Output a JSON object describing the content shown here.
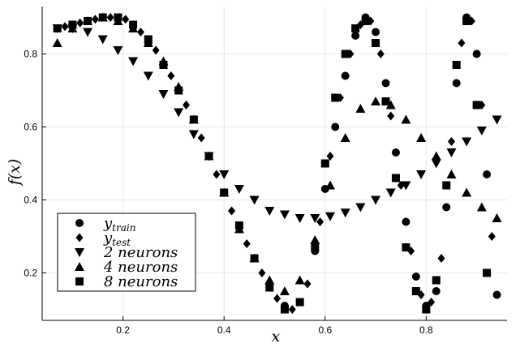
{
  "chart_data": {
    "type": "scatter",
    "xlabel": "x",
    "ylabel": "f(x)",
    "xlim": [
      0.04,
      0.96
    ],
    "ylim": [
      0.07,
      0.93
    ],
    "xticks": [
      0.2,
      0.4,
      0.6,
      0.8
    ],
    "yticks": [
      0.2,
      0.4,
      0.6,
      0.8
    ],
    "xtick_labels": [
      "0.2",
      "0.4",
      "0.6",
      "0.8"
    ],
    "ytick_labels": [
      "0.2",
      "0.4",
      "0.6",
      "0.8"
    ],
    "grid": true,
    "legend_position": "bottom-left",
    "series": [
      {
        "name_main": "y",
        "name_sub": "train",
        "marker": "circle",
        "x": [
          0.07,
          0.1,
          0.13,
          0.16,
          0.19,
          0.22,
          0.25,
          0.28,
          0.31,
          0.34,
          0.37,
          0.4,
          0.43,
          0.46,
          0.49,
          0.52,
          0.55,
          0.58,
          0.6,
          0.62,
          0.64,
          0.66,
          0.68,
          0.7,
          0.72,
          0.74,
          0.76,
          0.78,
          0.8,
          0.82,
          0.84,
          0.86,
          0.88,
          0.9,
          0.92,
          0.94
        ],
        "y": [
          0.87,
          0.88,
          0.89,
          0.9,
          0.9,
          0.88,
          0.83,
          0.77,
          0.7,
          0.62,
          0.52,
          0.42,
          0.33,
          0.24,
          0.16,
          0.11,
          0.12,
          0.26,
          0.43,
          0.6,
          0.74,
          0.85,
          0.9,
          0.86,
          0.72,
          0.53,
          0.34,
          0.19,
          0.11,
          0.15,
          0.38,
          0.72,
          0.9,
          0.8,
          0.47,
          0.14
        ]
      },
      {
        "name_main": "y",
        "name_sub": "test",
        "marker": "diamond",
        "x": [
          0.085,
          0.115,
          0.145,
          0.175,
          0.205,
          0.235,
          0.265,
          0.295,
          0.325,
          0.355,
          0.385,
          0.415,
          0.445,
          0.475,
          0.505,
          0.535,
          0.565,
          0.59,
          0.61,
          0.63,
          0.65,
          0.67,
          0.69,
          0.71,
          0.73,
          0.75,
          0.77,
          0.79,
          0.81,
          0.83,
          0.85,
          0.87,
          0.89,
          0.91,
          0.93
        ],
        "y": [
          0.875,
          0.885,
          0.895,
          0.9,
          0.895,
          0.86,
          0.81,
          0.74,
          0.66,
          0.57,
          0.47,
          0.37,
          0.28,
          0.2,
          0.13,
          0.1,
          0.17,
          0.34,
          0.52,
          0.68,
          0.8,
          0.88,
          0.89,
          0.8,
          0.63,
          0.44,
          0.26,
          0.14,
          0.12,
          0.24,
          0.56,
          0.83,
          0.89,
          0.66,
          0.3
        ]
      },
      {
        "name_main": "2 neurons",
        "name_sub": "",
        "marker": "triangle-down",
        "x": [
          0.07,
          0.1,
          0.13,
          0.16,
          0.19,
          0.22,
          0.25,
          0.28,
          0.31,
          0.34,
          0.37,
          0.4,
          0.43,
          0.46,
          0.49,
          0.52,
          0.55,
          0.58,
          0.61,
          0.64,
          0.67,
          0.7,
          0.73,
          0.76,
          0.79,
          0.82,
          0.85,
          0.88,
          0.91,
          0.94
        ],
        "y": [
          0.87,
          0.87,
          0.86,
          0.84,
          0.81,
          0.78,
          0.74,
          0.69,
          0.64,
          0.58,
          0.52,
          0.47,
          0.43,
          0.4,
          0.37,
          0.36,
          0.35,
          0.35,
          0.355,
          0.365,
          0.38,
          0.4,
          0.42,
          0.44,
          0.47,
          0.5,
          0.53,
          0.56,
          0.59,
          0.62
        ]
      },
      {
        "name_main": "4 neurons",
        "name_sub": "",
        "marker": "triangle-up",
        "x": [
          0.07,
          0.1,
          0.13,
          0.16,
          0.19,
          0.22,
          0.25,
          0.28,
          0.31,
          0.34,
          0.37,
          0.4,
          0.43,
          0.46,
          0.49,
          0.52,
          0.55,
          0.58,
          0.61,
          0.64,
          0.67,
          0.7,
          0.73,
          0.76,
          0.79,
          0.82,
          0.85,
          0.88,
          0.91,
          0.94
        ],
        "y": [
          0.83,
          0.87,
          0.89,
          0.9,
          0.89,
          0.87,
          0.83,
          0.78,
          0.71,
          0.62,
          0.52,
          0.42,
          0.32,
          0.24,
          0.18,
          0.15,
          0.18,
          0.29,
          0.44,
          0.57,
          0.65,
          0.67,
          0.66,
          0.62,
          0.57,
          0.52,
          0.47,
          0.42,
          0.38,
          0.35
        ]
      },
      {
        "name_main": "8 neurons",
        "name_sub": "",
        "marker": "square",
        "x": [
          0.07,
          0.1,
          0.13,
          0.16,
          0.19,
          0.22,
          0.25,
          0.28,
          0.31,
          0.34,
          0.37,
          0.4,
          0.43,
          0.46,
          0.49,
          0.52,
          0.55,
          0.58,
          0.6,
          0.62,
          0.64,
          0.66,
          0.68,
          0.7,
          0.72,
          0.74,
          0.76,
          0.78,
          0.8,
          0.82,
          0.84,
          0.86,
          0.88,
          0.9,
          0.92
        ],
        "y": [
          0.87,
          0.88,
          0.89,
          0.9,
          0.9,
          0.88,
          0.84,
          0.77,
          0.7,
          0.62,
          0.52,
          0.42,
          0.33,
          0.24,
          0.16,
          0.1,
          0.12,
          0.27,
          0.5,
          0.68,
          0.8,
          0.87,
          0.89,
          0.83,
          0.67,
          0.46,
          0.27,
          0.15,
          0.1,
          0.18,
          0.44,
          0.77,
          0.89,
          0.66,
          0.2
        ]
      }
    ]
  }
}
